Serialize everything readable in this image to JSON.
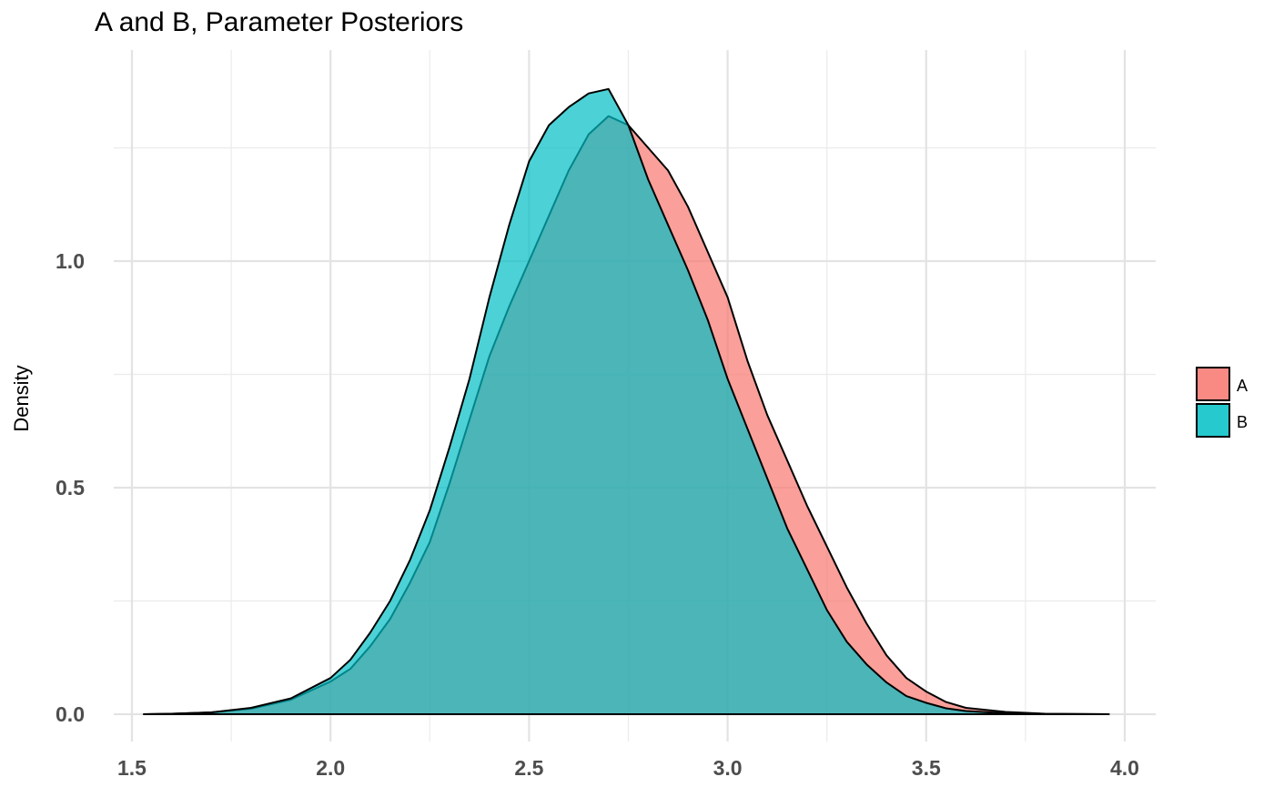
{
  "chart_data": {
    "type": "area",
    "title": "A and B, Parameter Posteriors",
    "xlabel": "",
    "ylabel": "Density",
    "xlim": [
      1.5,
      4.08
    ],
    "ylim": [
      0,
      1.4
    ],
    "x_ticks": [
      "1.5",
      "2.0",
      "2.5",
      "3.0",
      "3.5",
      "4.0"
    ],
    "y_ticks": [
      "0.0",
      "0.5",
      "1.0"
    ],
    "grid": true,
    "legend_position": "right",
    "series": [
      {
        "name": "A",
        "color": "#F8766D",
        "points": [
          [
            1.53,
            0
          ],
          [
            1.6,
            0.001
          ],
          [
            1.7,
            0.004
          ],
          [
            1.8,
            0.012
          ],
          [
            1.9,
            0.032
          ],
          [
            2.0,
            0.072
          ],
          [
            2.05,
            0.1
          ],
          [
            2.1,
            0.15
          ],
          [
            2.15,
            0.21
          ],
          [
            2.2,
            0.29
          ],
          [
            2.25,
            0.38
          ],
          [
            2.3,
            0.51
          ],
          [
            2.35,
            0.65
          ],
          [
            2.4,
            0.79
          ],
          [
            2.45,
            0.9
          ],
          [
            2.5,
            1.0
          ],
          [
            2.55,
            1.1
          ],
          [
            2.6,
            1.2
          ],
          [
            2.65,
            1.28
          ],
          [
            2.7,
            1.32
          ],
          [
            2.75,
            1.3
          ],
          [
            2.8,
            1.25
          ],
          [
            2.85,
            1.2
          ],
          [
            2.9,
            1.12
          ],
          [
            2.95,
            1.02
          ],
          [
            3.0,
            0.92
          ],
          [
            3.05,
            0.78
          ],
          [
            3.1,
            0.66
          ],
          [
            3.15,
            0.56
          ],
          [
            3.2,
            0.46
          ],
          [
            3.25,
            0.37
          ],
          [
            3.3,
            0.28
          ],
          [
            3.35,
            0.2
          ],
          [
            3.4,
            0.13
          ],
          [
            3.45,
            0.08
          ],
          [
            3.5,
            0.05
          ],
          [
            3.55,
            0.027
          ],
          [
            3.6,
            0.014
          ],
          [
            3.7,
            0.005
          ],
          [
            3.8,
            0.001
          ],
          [
            3.96,
            0
          ]
        ]
      },
      {
        "name": "B",
        "color": "#00BFC4",
        "points": [
          [
            1.53,
            0
          ],
          [
            1.6,
            0.001
          ],
          [
            1.7,
            0.004
          ],
          [
            1.8,
            0.014
          ],
          [
            1.9,
            0.035
          ],
          [
            2.0,
            0.08
          ],
          [
            2.05,
            0.12
          ],
          [
            2.1,
            0.18
          ],
          [
            2.15,
            0.25
          ],
          [
            2.2,
            0.34
          ],
          [
            2.25,
            0.45
          ],
          [
            2.3,
            0.59
          ],
          [
            2.35,
            0.74
          ],
          [
            2.4,
            0.92
          ],
          [
            2.45,
            1.08
          ],
          [
            2.5,
            1.22
          ],
          [
            2.55,
            1.3
          ],
          [
            2.6,
            1.34
          ],
          [
            2.65,
            1.37
          ],
          [
            2.7,
            1.38
          ],
          [
            2.75,
            1.3
          ],
          [
            2.8,
            1.18
          ],
          [
            2.85,
            1.08
          ],
          [
            2.9,
            0.98
          ],
          [
            2.95,
            0.87
          ],
          [
            3.0,
            0.74
          ],
          [
            3.05,
            0.63
          ],
          [
            3.1,
            0.52
          ],
          [
            3.15,
            0.41
          ],
          [
            3.2,
            0.32
          ],
          [
            3.25,
            0.23
          ],
          [
            3.3,
            0.16
          ],
          [
            3.35,
            0.11
          ],
          [
            3.4,
            0.07
          ],
          [
            3.45,
            0.04
          ],
          [
            3.5,
            0.025
          ],
          [
            3.55,
            0.013
          ],
          [
            3.6,
            0.007
          ],
          [
            3.7,
            0.002
          ],
          [
            3.8,
            0.0005
          ],
          [
            3.96,
            0
          ]
        ]
      }
    ]
  }
}
